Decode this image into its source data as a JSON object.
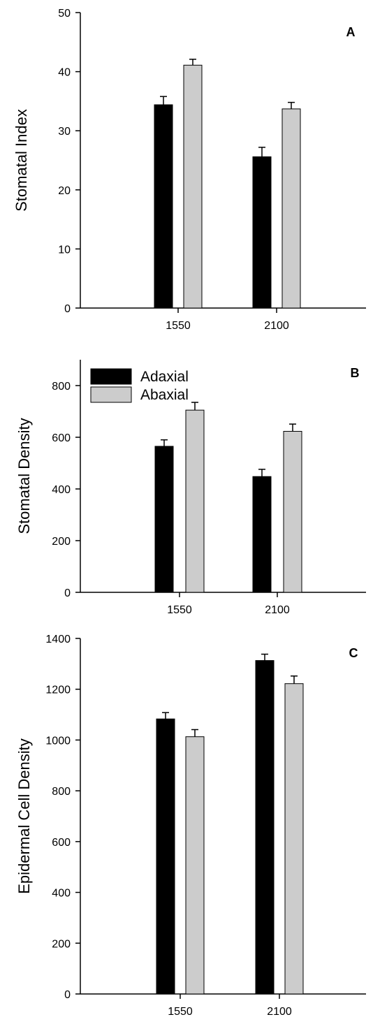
{
  "colors": {
    "adaxial": "#000000",
    "abaxial": "#cccccc",
    "axis": "#000000"
  },
  "legend": {
    "items": [
      "Adaxial",
      "Abaxial"
    ],
    "placement": "top-left (panel B)"
  },
  "chart_data": [
    {
      "type": "bar",
      "panel_label": "A",
      "title": "",
      "xlabel": "",
      "ylabel": "Stomatal Index",
      "categories": [
        "1550",
        "2100"
      ],
      "ylim": [
        0,
        50
      ],
      "yticks": [
        0,
        10,
        20,
        30,
        40,
        50
      ],
      "series": [
        {
          "name": "Adaxial",
          "values": [
            34.4,
            25.6
          ],
          "errors": [
            1.4,
            1.6
          ]
        },
        {
          "name": "Abaxial",
          "values": [
            41.1,
            33.7
          ],
          "errors": [
            1.0,
            1.1
          ]
        }
      ]
    },
    {
      "type": "bar",
      "panel_label": "B",
      "title": "",
      "xlabel": "",
      "ylabel": "Stomatal Density",
      "categories": [
        "1550",
        "2100"
      ],
      "ylim": [
        0,
        900
      ],
      "yticks": [
        0,
        200,
        400,
        600,
        800
      ],
      "series": [
        {
          "name": "Adaxial",
          "values": [
            565,
            448
          ],
          "errors": [
            25,
            28
          ]
        },
        {
          "name": "Abaxial",
          "values": [
            705,
            623
          ],
          "errors": [
            30,
            28
          ]
        }
      ]
    },
    {
      "type": "bar",
      "panel_label": "C",
      "title": "",
      "xlabel": "",
      "ylabel": "Epidermal Cell Density",
      "categories": [
        "1550",
        "2100"
      ],
      "ylim": [
        0,
        1400
      ],
      "yticks": [
        0,
        200,
        400,
        600,
        800,
        1000,
        1200,
        1400
      ],
      "series": [
        {
          "name": "Adaxial",
          "values": [
            1083,
            1313
          ],
          "errors": [
            25,
            25
          ]
        },
        {
          "name": "Abaxial",
          "values": [
            1013,
            1222
          ],
          "errors": [
            28,
            30
          ]
        }
      ]
    }
  ]
}
